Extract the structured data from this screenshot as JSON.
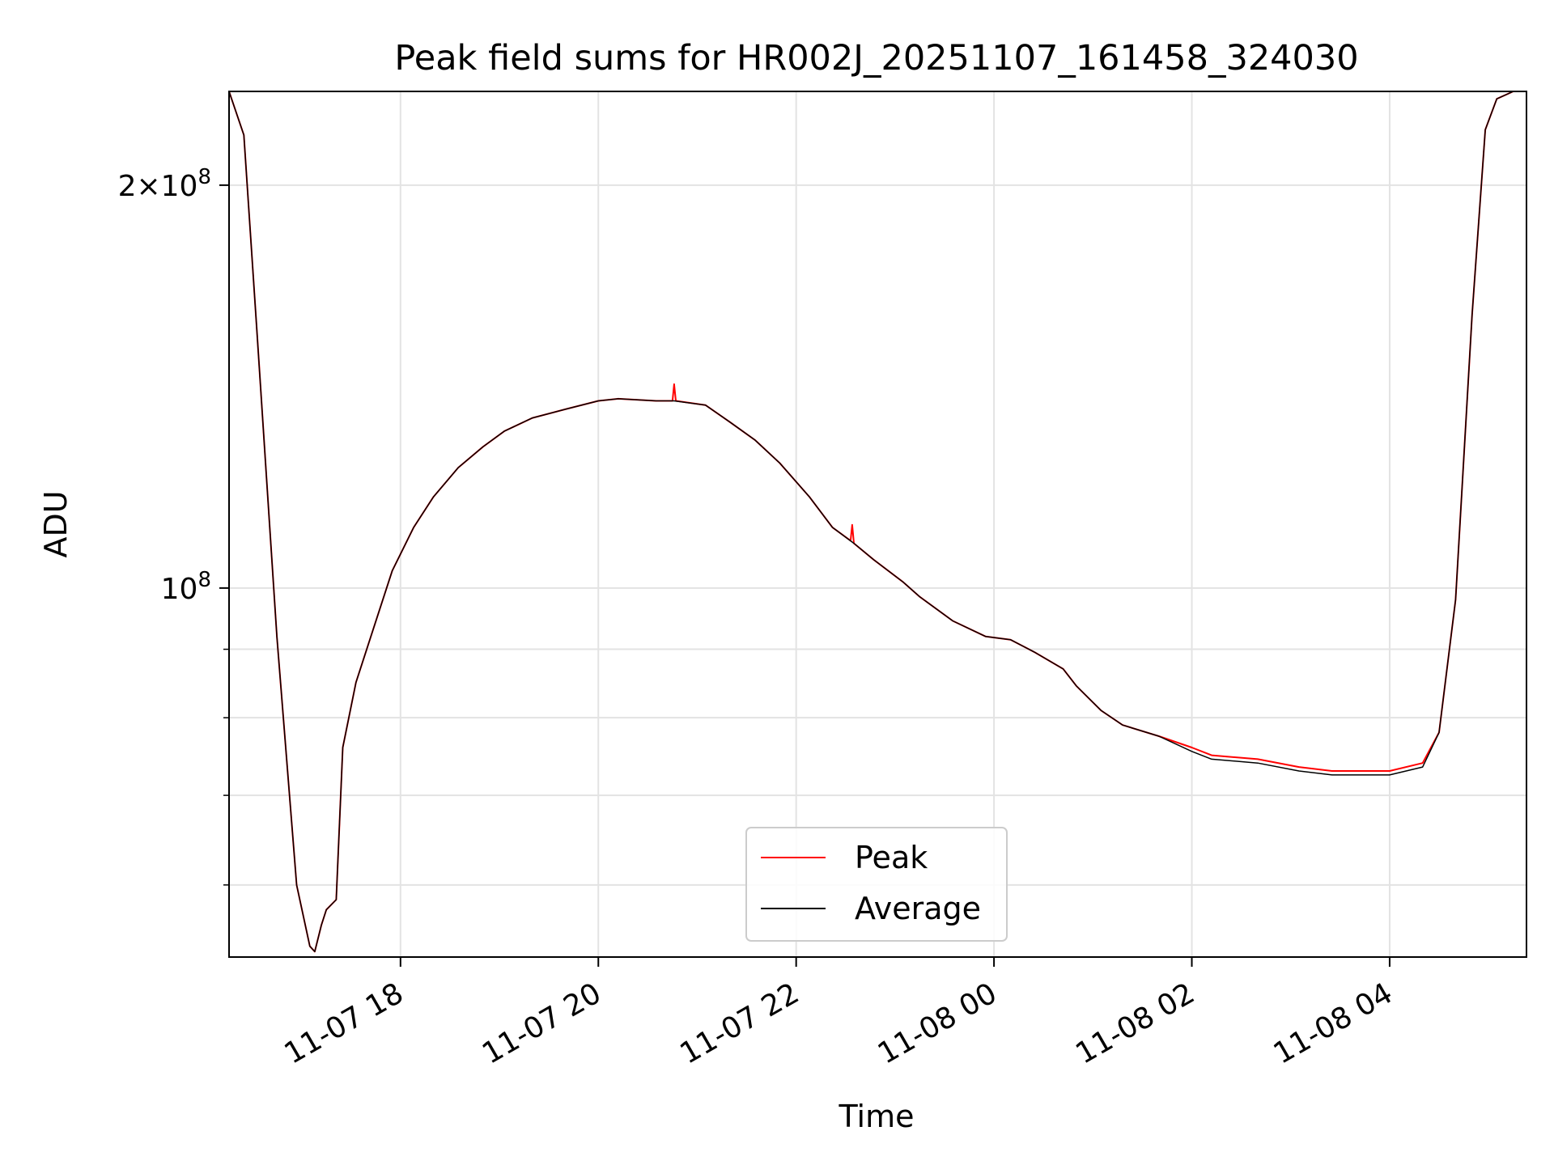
{
  "chart_data": {
    "type": "line",
    "title": "Peak field sums for HR002J_20251107_161458_324030",
    "xlabel": "Time",
    "ylabel": "ADU",
    "yscale": "log",
    "ylim": [
      53000000,
      235000000
    ],
    "xlim": [
      "2025-11-07 16:16",
      "2025-11-08 05:23"
    ],
    "grid": true,
    "legend_position": "bottom-center",
    "x_ticks": [
      {
        "value": "2025-11-07 18:00",
        "label": "11-07 18"
      },
      {
        "value": "2025-11-07 20:00",
        "label": "11-07 20"
      },
      {
        "value": "2025-11-07 22:00",
        "label": "11-07 22"
      },
      {
        "value": "2025-11-08 00:00",
        "label": "11-08 00"
      },
      {
        "value": "2025-11-08 02:00",
        "label": "11-08 02"
      },
      {
        "value": "2025-11-08 04:00",
        "label": "11-08 04"
      }
    ],
    "y_ticks": [
      {
        "value": 200000000,
        "mantissa": "2",
        "exponent": "8"
      },
      {
        "value": 100000000,
        "mantissa": "",
        "exponent": "8"
      }
    ],
    "y_minor_ticks": [
      60000000,
      70000000,
      80000000,
      90000000
    ],
    "series": [
      {
        "name": "Peak",
        "color": "#ff0000",
        "x": [
          "2025-11-07 16:16",
          "2025-11-07 16:25",
          "2025-11-07 16:33",
          "2025-11-07 16:45",
          "2025-11-07 16:57",
          "2025-11-07 17:05",
          "2025-11-07 17:08",
          "2025-11-07 17:12",
          "2025-11-07 17:15",
          "2025-11-07 17:21",
          "2025-11-07 17:25",
          "2025-11-07 17:33",
          "2025-11-07 17:42",
          "2025-11-07 17:55",
          "2025-11-07 18:08",
          "2025-11-07 18:20",
          "2025-11-07 18:35",
          "2025-11-07 18:50",
          "2025-11-07 19:03",
          "2025-11-07 19:20",
          "2025-11-07 19:40",
          "2025-11-07 20:00",
          "2025-11-07 20:12",
          "2025-11-07 20:35",
          "2025-11-07 20:45",
          "2025-11-07 20:46",
          "2025-11-07 20:47",
          "2025-11-07 21:05",
          "2025-11-07 21:20",
          "2025-11-07 21:35",
          "2025-11-07 21:50",
          "2025-11-07 22:08",
          "2025-11-07 22:22",
          "2025-11-07 22:33",
          "2025-11-07 22:34",
          "2025-11-07 22:35",
          "2025-11-07 22:47",
          "2025-11-07 23:05",
          "2025-11-07 23:15",
          "2025-11-07 23:35",
          "2025-11-07 23:55",
          "2025-11-08 00:10",
          "2025-11-08 00:25",
          "2025-11-08 00:42",
          "2025-11-08 00:50",
          "2025-11-08 01:05",
          "2025-11-08 01:18",
          "2025-11-08 01:40",
          "2025-11-08 02:00",
          "2025-11-08 02:12",
          "2025-11-08 02:40",
          "2025-11-08 03:05",
          "2025-11-08 03:25",
          "2025-11-08 03:40",
          "2025-11-08 04:00",
          "2025-11-08 04:20",
          "2025-11-08 04:30",
          "2025-11-08 04:40",
          "2025-11-08 04:50",
          "2025-11-08 04:58",
          "2025-11-08 05:05",
          "2025-11-08 05:15",
          "2025-11-08 05:23"
        ],
        "values": [
          235000000,
          218000000,
          155000000,
          92000000,
          60000000,
          54000000,
          53500000,
          56000000,
          57500000,
          58500000,
          76000000,
          85000000,
          92000000,
          103000000,
          111000000,
          117000000,
          123000000,
          127500000,
          131000000,
          134000000,
          136000000,
          138000000,
          138500000,
          138000000,
          138000000,
          142000000,
          138000000,
          137000000,
          133000000,
          129000000,
          124000000,
          117000000,
          111000000,
          108500000,
          111500000,
          108000000,
          105000000,
          101000000,
          98500000,
          94500000,
          92000000,
          91500000,
          89500000,
          87000000,
          84500000,
          81000000,
          79000000,
          77500000,
          76000000,
          75000000,
          74500000,
          73500000,
          73000000,
          73000000,
          73000000,
          74000000,
          78000000,
          98000000,
          160000000,
          220000000,
          232000000,
          235000000,
          235000000
        ]
      },
      {
        "name": "Average",
        "color": "#000000",
        "x": [
          "2025-11-07 16:16",
          "2025-11-07 16:25",
          "2025-11-07 16:33",
          "2025-11-07 16:45",
          "2025-11-07 16:57",
          "2025-11-07 17:05",
          "2025-11-07 17:08",
          "2025-11-07 17:12",
          "2025-11-07 17:15",
          "2025-11-07 17:21",
          "2025-11-07 17:25",
          "2025-11-07 17:33",
          "2025-11-07 17:42",
          "2025-11-07 17:55",
          "2025-11-07 18:08",
          "2025-11-07 18:20",
          "2025-11-07 18:35",
          "2025-11-07 18:50",
          "2025-11-07 19:03",
          "2025-11-07 19:20",
          "2025-11-07 19:40",
          "2025-11-07 20:00",
          "2025-11-07 20:12",
          "2025-11-07 20:35",
          "2025-11-07 20:46",
          "2025-11-07 21:05",
          "2025-11-07 21:20",
          "2025-11-07 21:35",
          "2025-11-07 21:50",
          "2025-11-07 22:08",
          "2025-11-07 22:22",
          "2025-11-07 22:35",
          "2025-11-07 22:47",
          "2025-11-07 23:05",
          "2025-11-07 23:15",
          "2025-11-07 23:35",
          "2025-11-07 23:55",
          "2025-11-08 00:10",
          "2025-11-08 00:25",
          "2025-11-08 00:42",
          "2025-11-08 00:50",
          "2025-11-08 01:05",
          "2025-11-08 01:18",
          "2025-11-08 01:40",
          "2025-11-08 02:00",
          "2025-11-08 02:12",
          "2025-11-08 02:40",
          "2025-11-08 03:05",
          "2025-11-08 03:25",
          "2025-11-08 03:40",
          "2025-11-08 04:00",
          "2025-11-08 04:20",
          "2025-11-08 04:30",
          "2025-11-08 04:40",
          "2025-11-08 04:50",
          "2025-11-08 04:58",
          "2025-11-08 05:05",
          "2025-11-08 05:15",
          "2025-11-08 05:23"
        ],
        "values": [
          235000000,
          218000000,
          155000000,
          92000000,
          60000000,
          54000000,
          53500000,
          56000000,
          57500000,
          58500000,
          76000000,
          85000000,
          92000000,
          103000000,
          111000000,
          117000000,
          123000000,
          127500000,
          131000000,
          134000000,
          136000000,
          138000000,
          138500000,
          138000000,
          138000000,
          137000000,
          133000000,
          129000000,
          124000000,
          117000000,
          111000000,
          108000000,
          105000000,
          101000000,
          98500000,
          94500000,
          92000000,
          91500000,
          89500000,
          87000000,
          84500000,
          81000000,
          79000000,
          77500000,
          75500000,
          74500000,
          74000000,
          73000000,
          72500000,
          72500000,
          72500000,
          73500000,
          78000000,
          98000000,
          160000000,
          220000000,
          232000000,
          235000000,
          235000000
        ]
      }
    ]
  }
}
